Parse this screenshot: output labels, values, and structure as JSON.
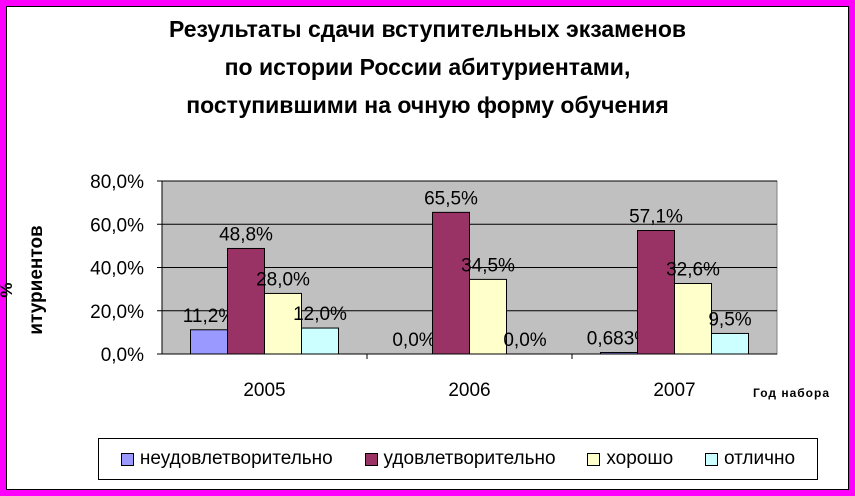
{
  "chart_data": {
    "type": "bar",
    "title_lines": [
      "Результаты сдачи вступительных экзаменов",
      "по истории России абитуриентами,",
      "поступившими на очную форму обучения"
    ],
    "ylabel": "%\nабитуриентов",
    "ylabel_visible": "итуриентов",
    "xlabel": "Год набора",
    "categories": [
      "2005",
      "2006",
      "2007"
    ],
    "ylim": [
      0,
      80
    ],
    "y_ticks": [
      "0,0%",
      "20,0%",
      "40,0%",
      "60,0%",
      "80,0%"
    ],
    "grid": true,
    "legend_position": "bottom",
    "series": [
      {
        "name": "неудовлетворительно",
        "color": "#9999ff",
        "values": [
          11.2,
          0.0,
          0.683
        ],
        "labels": [
          "11,2%",
          "0,0%",
          "0,683%"
        ]
      },
      {
        "name": "удовлетворительно",
        "color": "#993366",
        "values": [
          48.8,
          65.5,
          57.1
        ],
        "labels": [
          "48,8%",
          "65,5%",
          "57,1%"
        ]
      },
      {
        "name": "хорошо",
        "color": "#ffffcc",
        "values": [
          28.0,
          34.5,
          32.6
        ],
        "labels": [
          "28,0%",
          "34,5%",
          "32,6%"
        ]
      },
      {
        "name": "отлично",
        "color": "#ccffff",
        "values": [
          12.0,
          0.0,
          9.5
        ],
        "labels": [
          "12,0%",
          "0,0%",
          "9,5%"
        ]
      }
    ],
    "plot_background": "#c0c0c0",
    "page_background": "#ff00ff"
  }
}
